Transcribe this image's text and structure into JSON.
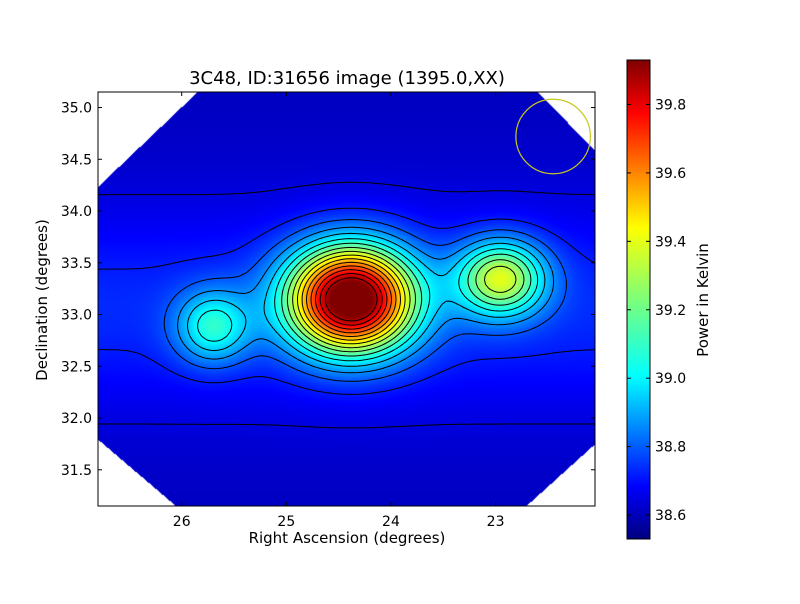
{
  "chart_data": {
    "type": "heatmap",
    "title": "3C48, ID:31656 image (1395.0,XX)",
    "xlabel": "Right Ascension (degrees)",
    "ylabel": "Declination (degrees)",
    "xlim": [
      26.8,
      22.05
    ],
    "ylim": [
      31.15,
      35.15
    ],
    "x_inverted": true,
    "xticks": [
      26,
      25,
      24,
      23
    ],
    "xtick_labels": [
      "26",
      "25",
      "24",
      "23"
    ],
    "yticks": [
      31.5,
      32.0,
      32.5,
      33.0,
      33.5,
      34.0,
      34.5,
      35.0
    ],
    "ytick_labels": [
      "31.5",
      "32.0",
      "32.5",
      "33.0",
      "33.5",
      "34.0",
      "34.5",
      "35.0"
    ],
    "colormap": "jet",
    "colorbar": {
      "label": "Power in Kelvin",
      "range": [
        38.53,
        39.93
      ],
      "ticks": [
        38.6,
        38.8,
        39.0,
        39.2,
        39.4,
        39.6,
        39.8
      ],
      "tick_labels": [
        "38.6",
        "38.8",
        "39.0",
        "39.2",
        "39.4",
        "39.6",
        "39.8"
      ]
    },
    "background_level": 38.62,
    "sources": [
      {
        "ra": 24.38,
        "dec": 33.15,
        "peak": 39.93,
        "sigma_ra": 0.42,
        "sigma_dec": 0.36
      },
      {
        "ra": 22.95,
        "dec": 33.35,
        "peak": 39.24,
        "sigma_ra": 0.3,
        "sigma_dec": 0.26
      },
      {
        "ra": 25.7,
        "dec": 32.88,
        "peak": 38.98,
        "sigma_ra": 0.25,
        "sigma_dec": 0.25
      }
    ],
    "ridge": {
      "dec_center": 33.05,
      "sigma_dec": 0.7,
      "amplitude": 0.14
    },
    "beam": {
      "ra": 22.45,
      "dec": 34.72,
      "radius_deg": 0.36,
      "color": "#c8c81e"
    },
    "contour_color": "#000000",
    "grid": false
  }
}
